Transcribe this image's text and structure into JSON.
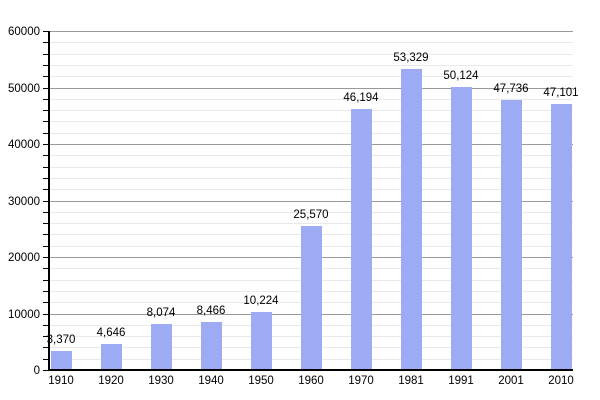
{
  "chart_data": {
    "type": "bar",
    "title": "",
    "categories": [
      "1910",
      "1920",
      "1930",
      "1940",
      "1950",
      "1960",
      "1970",
      "1981",
      "1991",
      "2001",
      "2010"
    ],
    "values": [
      3370,
      4646,
      8074,
      8466,
      10224,
      25570,
      46194,
      53329,
      50124,
      47736,
      47101
    ],
    "value_labels": [
      "3,370",
      "4,646",
      "8,074",
      "8,466",
      "10,224",
      "25,570",
      "46,194",
      "53,329",
      "50,124",
      "47,736",
      "47,101"
    ],
    "xlabel": "",
    "ylabel": "",
    "y_axis": {
      "min": 0,
      "max": 60000,
      "major_step": 10000,
      "minor_step": 2000,
      "tick_labels": [
        "0",
        "10000",
        "20000",
        "30000",
        "40000",
        "50000",
        "60000"
      ]
    },
    "legend": null,
    "grid": true,
    "colors": {
      "bar": "#9dabf4",
      "major_gridline": "#999999",
      "minor_gridline": "#e9e9e9",
      "axis": "#000000",
      "text": "#000000",
      "background": "#ffffff"
    }
  }
}
